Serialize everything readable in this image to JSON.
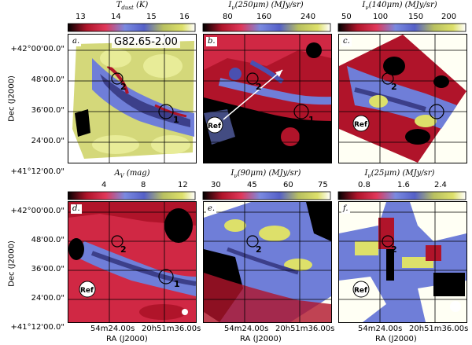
{
  "source_name": "G82.65-2.00",
  "colorbar_titles": [
    "T_dust (K)",
    "I_ν(250μm) (MJy/sr)",
    "I_ν(140μm) (MJy/sr)",
    "A_V (mag)",
    "I_ν(90μm) (MJy/sr)",
    "I_ν(25μm) (MJy/sr)"
  ],
  "cb": {
    "p1": {
      "title": "T",
      "sub": "dust",
      "unit": " (K)",
      "ticks": [
        "13",
        "14",
        "15",
        "16"
      ]
    },
    "p2": {
      "title": "I",
      "sub": "ν",
      "unit": "(250μm) (MJy/sr)",
      "ticks": [
        "80",
        "160",
        "240"
      ]
    },
    "p3": {
      "title": "I",
      "sub": "ν",
      "unit": "(140μm) (MJy/sr)",
      "ticks": [
        "50",
        "100",
        "150",
        "200"
      ]
    },
    "p4": {
      "title": "A",
      "sub": "V",
      "unit": " (mag)",
      "ticks": [
        "4",
        "8",
        "12"
      ]
    },
    "p5": {
      "title": "I",
      "sub": "ν",
      "unit": "(90μm) (MJy/sr)",
      "ticks": [
        "30",
        "45",
        "60",
        "75"
      ]
    },
    "p6": {
      "title": "I",
      "sub": "ν",
      "unit": "(25μm) (MJy/sr)",
      "ticks": [
        "0.8",
        "1.6",
        "2.4"
      ]
    }
  },
  "panel_labels": {
    "a": "a.",
    "b": "b.",
    "c": "c.",
    "d": "d.",
    "e": "e.",
    "f": "f."
  },
  "markers": {
    "one": "1",
    "two": "2",
    "ref": "Ref"
  },
  "dec_ticks": [
    "+42°00'00.0\"",
    "48'00.0\"",
    "36'00.0\"",
    "24'00.0\"",
    "+41°12'00.0\""
  ],
  "dec_label": "Dec (J2000)",
  "ra_ticks": [
    "54m24.00s",
    "20h51m36.00s"
  ],
  "ra_label": "RA (J2000)"
}
